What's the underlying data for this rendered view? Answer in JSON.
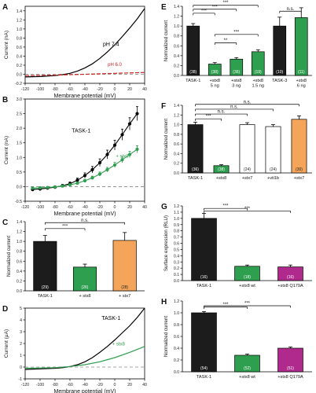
{
  "chart_data": [
    {
      "panel": "A",
      "type": "line",
      "xlabel": "Membrane potential (mV)",
      "ylabel": "Current (nA)",
      "xlim": [
        -120,
        40
      ],
      "ylim": [
        -0.2,
        1.5
      ],
      "xticks": [
        "-120",
        "-100",
        "-80",
        "-60",
        "-40",
        "-20",
        "0",
        "20",
        "40"
      ],
      "yticks": [
        "-0.2",
        "0.0",
        "0.2",
        "0.4",
        "0.6",
        "0.8",
        "1.0",
        "1.2",
        "1.4"
      ],
      "zero_line": "dashed",
      "series": [
        {
          "name": "pH 7.4",
          "color": "#000000",
          "x": [
            -120,
            -100,
            -80,
            -70,
            -60,
            -50,
            -40,
            -30,
            -20,
            -10,
            0,
            10,
            20,
            30,
            40
          ],
          "y": [
            -0.06,
            -0.05,
            -0.03,
            -0.01,
            0.02,
            0.07,
            0.14,
            0.23,
            0.35,
            0.49,
            0.65,
            0.83,
            1.02,
            1.22,
            1.45
          ]
        },
        {
          "name": "pH 6.0",
          "color": "#cc2222",
          "x": [
            -120,
            -80,
            -40,
            0,
            40
          ],
          "y": [
            -0.03,
            -0.02,
            0.0,
            0.02,
            0.04
          ]
        }
      ]
    },
    {
      "panel": "B",
      "type": "line",
      "xlabel": "Membrane potential (mV)",
      "ylabel": "Current (nA)",
      "xlim": [
        -120,
        40
      ],
      "ylim": [
        -0.5,
        3.0
      ],
      "xticks": [
        "-120",
        "-100",
        "-80",
        "-60",
        "-40",
        "-20",
        "0",
        "20",
        "40"
      ],
      "yticks": [
        "-0.5",
        "0.0",
        "0.5",
        "1.0",
        "1.5",
        "2.0",
        "2.5",
        "3.0"
      ],
      "zero_line": "dashed",
      "series": [
        {
          "name": "TASK-1",
          "color": "#000000",
          "x": [
            -110,
            -100,
            -90,
            -80,
            -70,
            -60,
            -50,
            -40,
            -30,
            -20,
            -10,
            0,
            10,
            20,
            30
          ],
          "y": [
            -0.1,
            -0.08,
            -0.05,
            -0.02,
            0.03,
            0.1,
            0.22,
            0.38,
            0.58,
            0.82,
            1.1,
            1.42,
            1.78,
            2.15,
            2.5
          ],
          "err": [
            0.05,
            0.05,
            0.05,
            0.05,
            0.05,
            0.06,
            0.07,
            0.09,
            0.11,
            0.13,
            0.15,
            0.17,
            0.19,
            0.21,
            0.24
          ]
        },
        {
          "name": "+ stx8",
          "color": "#2e9e4f",
          "x": [
            -110,
            -100,
            -90,
            -80,
            -70,
            -60,
            -50,
            -40,
            -30,
            -20,
            -10,
            0,
            10,
            20,
            30
          ],
          "y": [
            -0.05,
            -0.04,
            -0.03,
            -0.01,
            0.02,
            0.06,
            0.12,
            0.2,
            0.3,
            0.43,
            0.58,
            0.74,
            0.92,
            1.1,
            1.28
          ],
          "err": [
            0.03,
            0.03,
            0.03,
            0.03,
            0.03,
            0.04,
            0.04,
            0.05,
            0.06,
            0.07,
            0.08,
            0.09,
            0.1,
            0.11,
            0.12
          ]
        }
      ]
    },
    {
      "panel": "C",
      "type": "bar",
      "ylabel": "Normalized current",
      "ylim": [
        0,
        1.4
      ],
      "yticks": [
        "0.0",
        "0.2",
        "0.4",
        "0.6",
        "0.8",
        "1.0",
        "1.2",
        "1.4"
      ],
      "categories": [
        "TASK-1",
        "+ stx8",
        "+ stx7"
      ],
      "values": [
        1.0,
        0.48,
        1.02
      ],
      "errors": [
        0.12,
        0.06,
        0.16
      ],
      "n_labels": [
        "(29)",
        "(26)",
        "(28)"
      ],
      "colors": [
        "#1c1c1c",
        "#2e9e4f",
        "#f4a55a"
      ],
      "significance": [
        {
          "from": 0,
          "to": 1,
          "label": "***"
        },
        {
          "from": 0,
          "to": 2,
          "label": "n.s."
        }
      ]
    },
    {
      "panel": "D",
      "type": "line",
      "xlabel": "Membrane potential (mV)",
      "ylabel": "Current (μA)",
      "xlim": [
        -120,
        40
      ],
      "ylim": [
        -1,
        5
      ],
      "xticks": [
        "-120",
        "-100",
        "-80",
        "-60",
        "-40",
        "-20",
        "0",
        "20",
        "40"
      ],
      "yticks": [
        "-1",
        "0",
        "1",
        "2",
        "3",
        "4",
        "5"
      ],
      "zero_line": "dashed",
      "series": [
        {
          "name": "TASK-1",
          "color": "#000000",
          "x": [
            -120,
            -100,
            -80,
            -70,
            -60,
            -50,
            -40,
            -30,
            -20,
            -10,
            0,
            10,
            20,
            30,
            40
          ],
          "y": [
            -0.2,
            -0.15,
            -0.1,
            -0.05,
            0.05,
            0.2,
            0.45,
            0.8,
            1.25,
            1.75,
            2.3,
            2.9,
            3.5,
            4.2,
            5.0
          ]
        },
        {
          "name": "+ stx8",
          "color": "#2e9e4f",
          "x": [
            -120,
            -100,
            -80,
            -60,
            -40,
            -20,
            0,
            20,
            40
          ],
          "y": [
            -0.1,
            -0.08,
            -0.05,
            0.05,
            0.2,
            0.45,
            0.8,
            1.25,
            1.75
          ]
        }
      ]
    },
    {
      "panel": "E",
      "type": "bar",
      "ylabel": "Normalized current",
      "ylim": [
        0,
        1.4
      ],
      "yticks": [
        "0.0",
        "0.2",
        "0.4",
        "0.6",
        "0.8",
        "1.0",
        "1.2",
        "1.4"
      ],
      "categories": [
        "TASK-1",
        "+stx8\n5 ng",
        "+stx8\n3 ng",
        "+stx8\n1.5 ng",
        "TASK-3",
        "+stx8\n6 ng"
      ],
      "values": [
        1.0,
        0.23,
        0.33,
        0.48,
        1.0,
        1.17
      ],
      "errors": [
        0.05,
        0.03,
        0.03,
        0.04,
        0.18,
        0.2
      ],
      "n_labels": [
        "(38)",
        "(38)",
        "(36)",
        "(19)",
        "(10)",
        "(11)"
      ],
      "colors": [
        "#1c1c1c",
        "#2e9e4f",
        "#2e9e4f",
        "#2e9e4f",
        "#1c1c1c",
        "#2e9e4f"
      ],
      "significance": [
        {
          "from": 0,
          "to": 3,
          "label": "***"
        },
        {
          "from": 0,
          "to": 2,
          "label": "***"
        },
        {
          "from": 0,
          "to": 1,
          "label": "***"
        },
        {
          "from": 1,
          "to": 3,
          "label": "***"
        },
        {
          "from": 1,
          "to": 2,
          "label": "**"
        },
        {
          "from": 4,
          "to": 5,
          "label": "n.s."
        }
      ]
    },
    {
      "panel": "F",
      "type": "bar",
      "ylabel": "Normalized current",
      "ylim": [
        0,
        1.4
      ],
      "yticks": [
        "0.0",
        "0.2",
        "0.4",
        "0.6",
        "0.8",
        "1.0",
        "1.2",
        "1.4"
      ],
      "categories": [
        "TASK-1",
        "+stx8",
        "+stx7",
        "+vti1b",
        "+stx7"
      ],
      "values": [
        1.0,
        0.15,
        1.0,
        0.96,
        1.11
      ],
      "errors": [
        0.05,
        0.02,
        0.04,
        0.04,
        0.07
      ],
      "n_labels": [
        "(36)",
        "(38)",
        "(24)",
        "(24)",
        "(30)"
      ],
      "colors": [
        "#1c1c1c",
        "#2e9e4f",
        "#ffffff",
        "#ffffff",
        "#f4a55a"
      ],
      "significance": [
        {
          "from": 0,
          "to": 4,
          "label": "n.s."
        },
        {
          "from": 0,
          "to": 3,
          "label": "n.s."
        },
        {
          "from": 0,
          "to": 2,
          "label": "n.s."
        },
        {
          "from": 0,
          "to": 1,
          "label": "***"
        }
      ]
    },
    {
      "panel": "G",
      "type": "bar",
      "ylabel": "Surface expression (RLU)",
      "ylim": [
        0,
        1.2
      ],
      "yticks": [
        "0.0",
        "0.1",
        "0.2",
        "0.3",
        "0.4",
        "0.5",
        "0.6",
        "0.7",
        "0.8",
        "0.9",
        "1.0",
        "1.1",
        "1.2"
      ],
      "categories": [
        "TASK-1",
        "+stx8 wt",
        "+stx8 Q179A"
      ],
      "values": [
        1.0,
        0.23,
        0.22
      ],
      "errors": [
        0.08,
        0.02,
        0.03
      ],
      "n_labels": [
        "(16)",
        "(18)",
        "(16)"
      ],
      "colors": [
        "#1c1c1c",
        "#2e9e4f",
        "#b02a8e"
      ],
      "significance": [
        {
          "from": 0,
          "to": 1,
          "label": "***"
        },
        {
          "from": 0,
          "to": 2,
          "label": "***"
        }
      ]
    },
    {
      "panel": "H",
      "type": "bar",
      "ylabel": "Normalized current",
      "ylim": [
        0,
        1.2
      ],
      "yticks": [
        "0.0",
        "0.2",
        "0.4",
        "0.6",
        "0.8",
        "1.0",
        "1.2"
      ],
      "categories": [
        "TASK-1",
        "+stx8 wt",
        "+stx8 Q179A"
      ],
      "values": [
        1.0,
        0.28,
        0.4
      ],
      "errors": [
        0.02,
        0.02,
        0.02
      ],
      "n_labels": [
        "(54)",
        "(52)",
        "(51)"
      ],
      "colors": [
        "#1c1c1c",
        "#2e9e4f",
        "#b02a8e"
      ],
      "significance": [
        {
          "from": 0,
          "to": 1,
          "label": "***"
        },
        {
          "from": 0,
          "to": 2,
          "label": "***"
        }
      ]
    }
  ]
}
